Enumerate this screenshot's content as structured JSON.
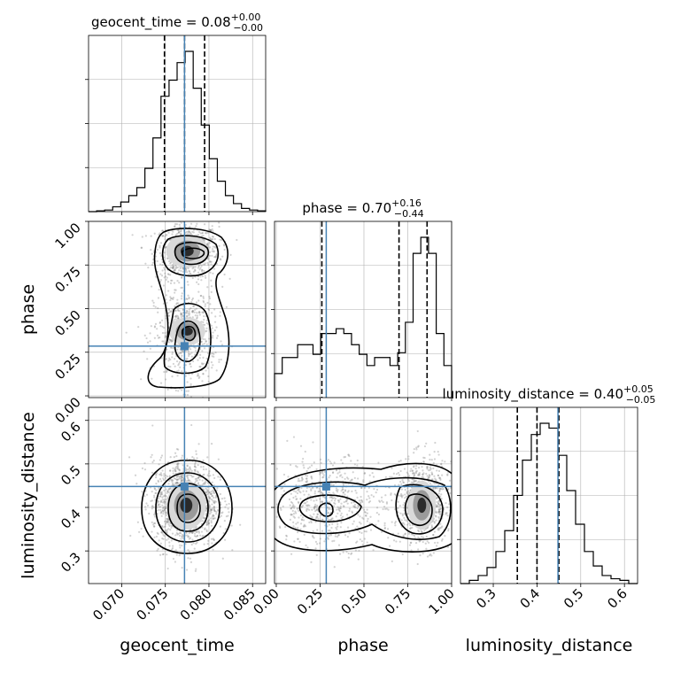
{
  "colors": {
    "truth": "#4682b4",
    "hist": "#000000",
    "quantile": "#000000",
    "grid": "#b0b0b0",
    "samples": "#7f7f7f"
  },
  "chart_data": {
    "type": "corner",
    "parameters": [
      "geocent_time",
      "phase",
      "luminosity_distance"
    ],
    "axis_labels": {
      "geocent_time": "geocent_time",
      "phase": "phase",
      "luminosity_distance": "luminosity_distance"
    },
    "titles": [
      {
        "name": "geocent_time",
        "lead": "geocent_time = 0.08",
        "plus": "+0.00",
        "minus": "−0.00"
      },
      {
        "name": "phase",
        "lead": "phase = 0.70",
        "plus": "+0.16",
        "minus": "−0.44"
      },
      {
        "name": "luminosity_distance",
        "lead": "luminosity_distance = 0.40",
        "plus": "+0.05",
        "minus": "−0.05"
      }
    ],
    "ranges": {
      "geocent_time": [
        0.0662,
        0.0865
      ],
      "phase": [
        -0.01,
        1.0
      ],
      "luminosity_distance": [
        0.225,
        0.63
      ]
    },
    "ticks": {
      "geocent_time": {
        "values": [
          0.07,
          0.075,
          0.08,
          0.085
        ],
        "labels": [
          "0.070",
          "0.075",
          "0.080",
          "0.085"
        ]
      },
      "phase": {
        "values": [
          0.0,
          0.25,
          0.5,
          0.75,
          1.0
        ],
        "labels": [
          "0.00",
          "0.25",
          "0.50",
          "0.75",
          "1.00"
        ]
      },
      "luminosity_distance": {
        "values": [
          0.3,
          0.4,
          0.5,
          0.6
        ],
        "labels": [
          "0.3",
          "0.4",
          "0.5",
          "0.6"
        ]
      }
    },
    "truths": {
      "geocent_time": 0.0772,
      "phase": 0.285,
      "luminosity_distance": 0.448
    },
    "quantiles": {
      "geocent_time": [
        0.0749,
        0.0772,
        0.0795
      ],
      "phase": [
        0.26,
        0.7,
        0.86
      ],
      "luminosity_distance": [
        0.355,
        0.4,
        0.45
      ]
    },
    "histograms": {
      "geocent_time": [
        0.0,
        0.005,
        0.01,
        0.03,
        0.06,
        0.1,
        0.15,
        0.27,
        0.46,
        0.72,
        0.82,
        0.93,
        1.0,
        0.77,
        0.54,
        0.33,
        0.19,
        0.1,
        0.05,
        0.02,
        0.01,
        0.005
      ],
      "phase": [
        0.15,
        0.25,
        0.25,
        0.33,
        0.33,
        0.27,
        0.4,
        0.4,
        0.43,
        0.4,
        0.33,
        0.27,
        0.2,
        0.25,
        0.25,
        0.2,
        0.28,
        0.47,
        0.9,
        1.0,
        0.9,
        0.4,
        0.2
      ],
      "luminosity_distance": [
        0.0,
        0.02,
        0.05,
        0.1,
        0.2,
        0.33,
        0.55,
        0.77,
        0.93,
        1.0,
        0.97,
        0.8,
        0.58,
        0.37,
        0.2,
        0.11,
        0.05,
        0.03,
        0.02,
        0.0
      ]
    },
    "grid": true,
    "sample_clouds": {
      "geocent_time_vs_phase": [
        {
          "x": 0.0775,
          "y": 0.83,
          "sx": 0.0018,
          "sy": 0.08,
          "w": 0.55
        },
        {
          "x": 0.0773,
          "y": 0.34,
          "sx": 0.0018,
          "sy": 0.14,
          "w": 0.45
        }
      ],
      "geocent_time_vs_luminosity_distance": [
        {
          "x": 0.0773,
          "y": 0.41,
          "sx": 0.0019,
          "sy": 0.05,
          "w": 1.0
        }
      ],
      "phase_vs_luminosity_distance": [
        {
          "x": 0.84,
          "y": 0.41,
          "sx": 0.08,
          "sy": 0.05,
          "w": 0.55
        },
        {
          "x": 0.3,
          "y": 0.41,
          "sx": 0.16,
          "sy": 0.05,
          "w": 0.45
        }
      ]
    },
    "density_peaks": {
      "geocent_time_vs_phase": [
        {
          "x": 0.0775,
          "y": 0.83,
          "rx": 0.0015,
          "ry": 0.06
        },
        {
          "x": 0.0775,
          "y": 0.37,
          "rx": 0.0013,
          "ry": 0.05
        }
      ],
      "geocent_time_vs_luminosity_distance": [
        {
          "x": 0.0774,
          "y": 0.405,
          "rx": 0.0014,
          "ry": 0.035
        }
      ],
      "phase_vs_luminosity_distance": [
        {
          "x": 0.83,
          "y": 0.405,
          "rx": 0.05,
          "ry": 0.035
        }
      ]
    }
  }
}
